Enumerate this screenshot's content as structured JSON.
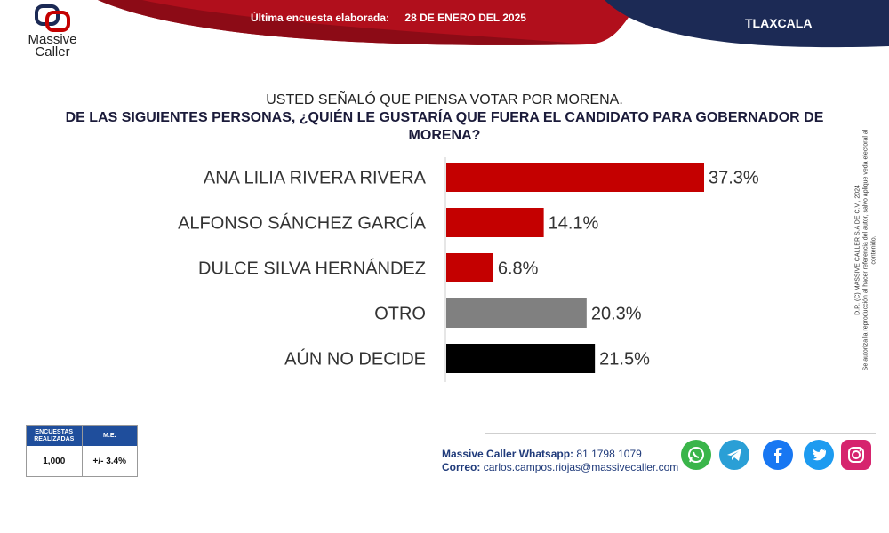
{
  "header": {
    "survey_label": "Última encuesta elaborada:",
    "survey_date": "28 DE ENERO DEL 2025",
    "region": "TLAXCALA",
    "logo_top": "Massive",
    "logo_bottom": "Caller"
  },
  "question": {
    "line1": "USTED SEÑALÓ QUE PIENSA VOTAR POR MORENA.",
    "line2": "DE LAS SIGUIENTES PERSONAS, ¿QUIÉN LE GUSTARÍA QUE FUERA EL CANDIDATO PARA GOBERNADOR DE MORENA?"
  },
  "chart_data": {
    "type": "bar",
    "orientation": "horizontal",
    "categories": [
      "ANA LILIA RIVERA RIVERA",
      "ALFONSO SÁNCHEZ GARCÍA",
      "DULCE SILVA HERNÁNDEZ",
      "OTRO",
      "AÚN NO DECIDE"
    ],
    "values": [
      37.3,
      14.1,
      6.8,
      20.3,
      21.5
    ],
    "value_labels": [
      "37.3%",
      "14.1%",
      "6.8%",
      "20.3%",
      "21.5%"
    ],
    "colors": [
      "#c40000",
      "#c40000",
      "#c40000",
      "#808080",
      "#000000"
    ],
    "xlim": [
      0,
      37.3
    ],
    "title": "",
    "xlabel": "",
    "ylabel": ""
  },
  "side_note": {
    "line1": "D.R. (C) MASSIVE CALLER S.A DE C.V., 2024",
    "line2": "Se autoriza la reproducción al hacer referencia del autor, salvo aplique veda electoral al contenido."
  },
  "stats": {
    "col1_header": "ENCUESTAS REALIZADAS",
    "col2_header": "M.E.",
    "col1_value": "1,000",
    "col2_value": "+/- 3.4%"
  },
  "contact": {
    "whatsapp_label": "Massive Caller Whatsapp:",
    "whatsapp_number": "81 1798 1079",
    "email_label": "Correo:",
    "email": "carlos.campos.riojas@massivecaller.com"
  },
  "social": [
    "whatsapp-icon",
    "telegram-icon",
    "facebook-icon",
    "twitter-icon",
    "instagram-icon"
  ],
  "colors": {
    "red": "#c40000",
    "navy": "#1c2a55",
    "gray": "#808080"
  }
}
